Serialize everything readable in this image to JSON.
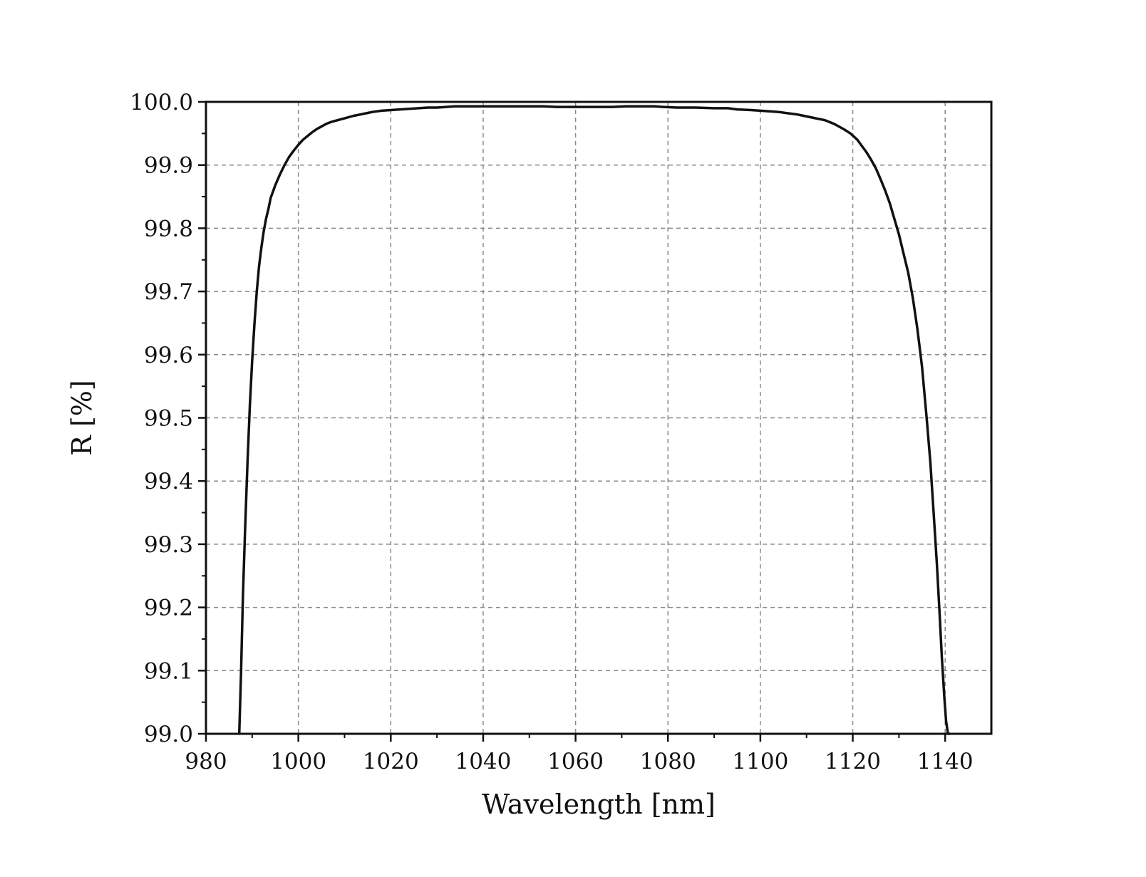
{
  "chart_data": {
    "type": "line",
    "title": "",
    "xlabel": "Wavelength [nm]",
    "ylabel": "R [%]",
    "xlim": [
      980,
      1150
    ],
    "ylim": [
      99.0,
      100.0
    ],
    "grid": true,
    "grid_style": "dashed",
    "x_ticks": [
      980,
      1000,
      1020,
      1040,
      1060,
      1080,
      1100,
      1120,
      1140
    ],
    "x_tick_labels": [
      "980",
      "1000",
      "1020",
      "1040",
      "1060",
      "1080",
      "1100",
      "1120",
      "1140"
    ],
    "y_ticks": [
      99.0,
      99.1,
      99.2,
      99.3,
      99.4,
      99.5,
      99.6,
      99.7,
      99.8,
      99.9,
      100.0
    ],
    "y_tick_labels": [
      "99.0",
      "99.1",
      "99.2",
      "99.3",
      "99.4",
      "99.5",
      "99.6",
      "99.7",
      "99.8",
      "99.9",
      "100.0"
    ],
    "colors": {
      "line": "#111111",
      "grid": "#8a8a8a",
      "axis": "#111111"
    },
    "series": [
      {
        "x": [
          987.2,
          987.6,
          988.0,
          988.5,
          989.0,
          989.5,
          990.0,
          990.5,
          991.0,
          991.5,
          992.0,
          992.5,
          993.0,
          993.5,
          994.0,
          995.0,
          996.0,
          997.0,
          998.0,
          999.0,
          1000.0,
          1001.0,
          1002.0,
          1003.0,
          1004.0,
          1005.0,
          1006.0,
          1007.0,
          1008.0,
          1009.0,
          1010.0,
          1012.0,
          1014.0,
          1016.0,
          1018.0,
          1020.0,
          1022.0,
          1024.0,
          1026.0,
          1028.0,
          1030.0,
          1032.0,
          1034.0,
          1036.0,
          1038.0,
          1040.0,
          1042.0,
          1044.0,
          1046.0,
          1048.0,
          1050.0,
          1053.0,
          1056.0,
          1059.0,
          1062.0,
          1065.0,
          1068.0,
          1071.0,
          1073.0,
          1075.0,
          1077.0,
          1079.0,
          1082.0,
          1086.0,
          1090.0,
          1093.0,
          1095.0,
          1098.0,
          1100.0,
          1102.0,
          1104.0,
          1106.0,
          1108.0,
          1110.0,
          1112.0,
          1114.0,
          1116.0,
          1118.0,
          1119.5,
          1121.0,
          1122.0,
          1123.0,
          1124.0,
          1125.0,
          1126.0,
          1127.0,
          1128.0,
          1129.0,
          1130.0,
          1131.0,
          1132.0,
          1133.0,
          1134.0,
          1135.0,
          1136.0,
          1136.8,
          1137.5,
          1138.2,
          1138.8,
          1139.3,
          1139.8,
          1140.2,
          1140.6,
          1141.0
        ],
        "values": [
          99.0,
          99.1,
          99.22,
          99.33,
          99.43,
          99.52,
          99.59,
          99.65,
          99.7,
          99.74,
          99.77,
          99.795,
          99.815,
          99.83,
          99.848,
          99.868,
          99.885,
          99.9,
          99.913,
          99.923,
          99.932,
          99.94,
          99.946,
          99.952,
          99.957,
          99.961,
          99.965,
          99.968,
          99.97,
          99.972,
          99.974,
          99.978,
          99.981,
          99.984,
          99.986,
          99.987,
          99.988,
          99.989,
          99.99,
          99.991,
          99.991,
          99.992,
          99.993,
          99.993,
          99.993,
          99.993,
          99.993,
          99.993,
          99.993,
          99.993,
          99.993,
          99.993,
          99.992,
          99.992,
          99.992,
          99.992,
          99.992,
          99.993,
          99.993,
          99.993,
          99.993,
          99.992,
          99.991,
          99.991,
          99.99,
          99.99,
          99.988,
          99.987,
          99.986,
          99.985,
          99.984,
          99.982,
          99.98,
          99.977,
          99.974,
          99.971,
          99.965,
          99.957,
          99.95,
          99.94,
          99.93,
          99.92,
          99.908,
          99.895,
          99.878,
          99.86,
          99.84,
          99.815,
          99.79,
          99.76,
          99.73,
          99.69,
          99.64,
          99.58,
          99.5,
          99.43,
          99.35,
          99.27,
          99.19,
          99.12,
          99.06,
          99.02,
          99.0,
          99.0
        ]
      }
    ]
  }
}
